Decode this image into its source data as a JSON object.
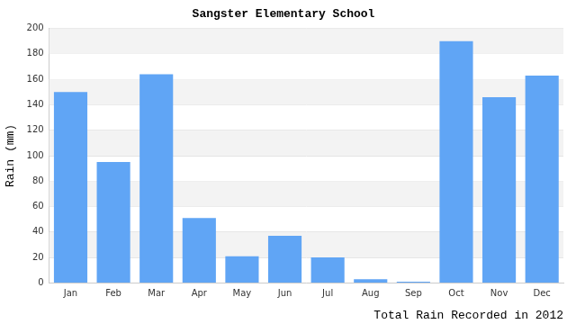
{
  "chart_data": {
    "type": "bar",
    "title": "Sangster Elementary School",
    "ylabel": "Rain (mm)",
    "xlabel": "Total Rain Recorded in 2012",
    "categories": [
      "Jan",
      "Feb",
      "Mar",
      "Apr",
      "May",
      "Jun",
      "Jul",
      "Aug",
      "Sep",
      "Oct",
      "Nov",
      "Dec"
    ],
    "values": [
      150,
      95,
      164,
      51,
      21,
      37,
      20,
      3,
      1,
      190,
      146,
      163
    ],
    "color": "#60a5f5",
    "ylim": [
      0,
      200
    ],
    "yticks": [
      0,
      20,
      40,
      60,
      80,
      100,
      120,
      140,
      160,
      180,
      200
    ],
    "grid": true
  }
}
